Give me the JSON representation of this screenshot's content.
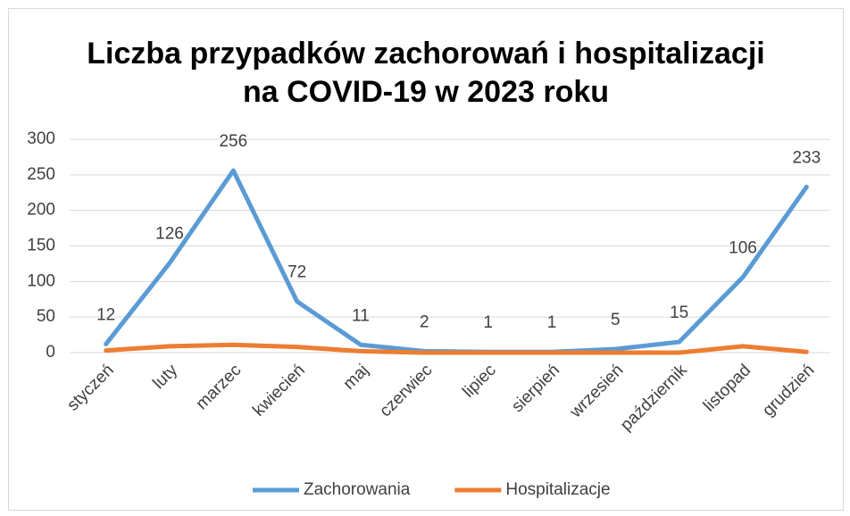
{
  "chart_data": {
    "type": "line",
    "title": [
      "Liczba przypadków zachorowań i hospitalizacji",
      "na COVID-19 w 2023 roku"
    ],
    "categories": [
      "styczeń",
      "luty",
      "marzec",
      "kwiecień",
      "maj",
      "czerwiec",
      "lipiec",
      "sierpień",
      "wrzesień",
      "październik",
      "listopad",
      "grudzień"
    ],
    "series": [
      {
        "name": "Zachorowania",
        "color": "#5b9bd5",
        "values": [
          12,
          126,
          256,
          72,
          11,
          2,
          1,
          1,
          5,
          15,
          106,
          233
        ],
        "data_labels": true
      },
      {
        "name": "Hospitalizacje",
        "color": "#ed7d31",
        "values": [
          3,
          9,
          11,
          8,
          2,
          0,
          0,
          0,
          0,
          0,
          9,
          1
        ],
        "data_labels": false
      }
    ],
    "ylim": [
      0,
      300
    ],
    "yticks": [
      0,
      50,
      100,
      150,
      200,
      250,
      300
    ],
    "grid": true,
    "legend": "bottom"
  }
}
